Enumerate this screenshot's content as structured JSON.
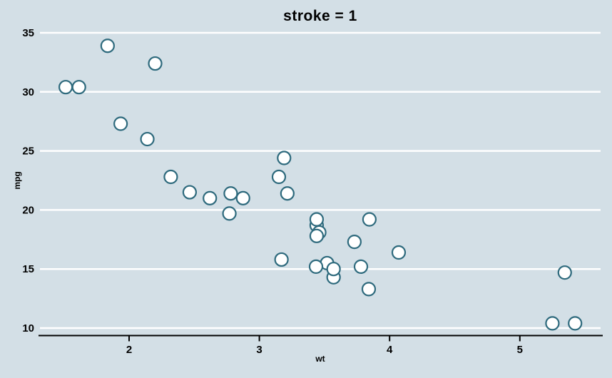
{
  "colors": {
    "background": "#d3dfe6",
    "gridline": "#ffffff",
    "axis_line": "#000000",
    "text": "#000000",
    "point_stroke": "#2e6a7d",
    "point_fill": "#ffffff"
  },
  "chart_data": {
    "type": "scatter",
    "title": "stroke = 1",
    "xlabel": "wt",
    "ylabel": "mpg",
    "x_ticks": [
      2,
      3,
      4,
      5
    ],
    "y_ticks": [
      10,
      15,
      20,
      25,
      30,
      35
    ],
    "xlim": [
      1.32,
      5.62
    ],
    "ylim": [
      9.4,
      35.4
    ],
    "grid": "horizontal-only",
    "legend": "none",
    "marker": {
      "shape": "open-circle",
      "fill": "#ffffff",
      "stroke": "#2e6a7d",
      "radius_px": 9,
      "stroke_width_px": 2.2
    },
    "point_format": [
      "wt",
      "mpg"
    ],
    "points": [
      [
        2.62,
        21.0
      ],
      [
        2.875,
        21.0
      ],
      [
        2.32,
        22.8
      ],
      [
        3.215,
        21.4
      ],
      [
        3.44,
        18.7
      ],
      [
        3.46,
        18.1
      ],
      [
        3.57,
        14.3
      ],
      [
        3.19,
        24.4
      ],
      [
        3.15,
        22.8
      ],
      [
        3.44,
        19.2
      ],
      [
        3.44,
        17.8
      ],
      [
        4.07,
        16.4
      ],
      [
        3.73,
        17.3
      ],
      [
        3.78,
        15.2
      ],
      [
        5.25,
        10.4
      ],
      [
        5.424,
        10.4
      ],
      [
        5.345,
        14.7
      ],
      [
        2.2,
        32.4
      ],
      [
        1.615,
        30.4
      ],
      [
        1.835,
        33.9
      ],
      [
        2.465,
        21.5
      ],
      [
        3.52,
        15.5
      ],
      [
        3.435,
        15.2
      ],
      [
        3.84,
        13.3
      ],
      [
        3.845,
        19.2
      ],
      [
        1.935,
        27.3
      ],
      [
        2.14,
        26.0
      ],
      [
        1.513,
        30.4
      ],
      [
        3.17,
        15.8
      ],
      [
        2.77,
        19.7
      ],
      [
        3.57,
        15.0
      ],
      [
        2.78,
        21.4
      ]
    ]
  }
}
